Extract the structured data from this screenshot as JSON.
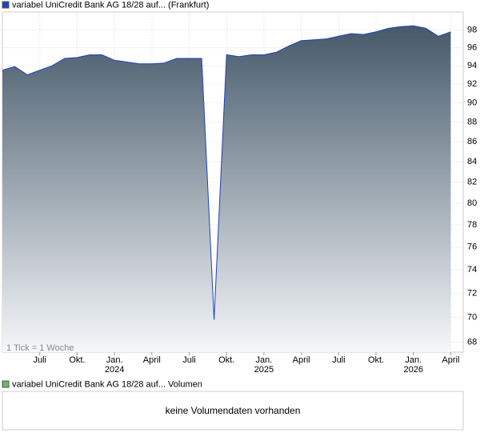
{
  "chart_data": {
    "type": "area",
    "title": "variabel UniCredit Bank AG 18/28 auf... (Frankfurt)",
    "note": "1 Tick = 1 Woche",
    "volume_legend": "variabel UniCredit Bank AG 18/28 auf... Volumen",
    "volume_message": "keine Volumendaten vorhanden",
    "volume_color": "#66bb66",
    "x": [
      "2023-04",
      "2023-05",
      "2023-06",
      "2023-07",
      "2023-08",
      "2023-09",
      "2023-10",
      "2023-11",
      "2023-12",
      "2024-01",
      "2024-02",
      "2024-03",
      "2024-04",
      "2024-05",
      "2024-06",
      "2024-07",
      "2024-08",
      "2024-09",
      "2024-10",
      "2024-11",
      "2024-12",
      "2025-01",
      "2025-02",
      "2025-03",
      "2025-04",
      "2025-05",
      "2025-06",
      "2025-07",
      "2025-08",
      "2025-09",
      "2025-10",
      "2025-11",
      "2025-12",
      "2026-01",
      "2026-02",
      "2026-03",
      "2026-04"
    ],
    "series": [
      {
        "name": "variabel UniCredit Bank AG 18/28 auf... (Frankfurt)",
        "color": "#1f3fbf",
        "values": [
          93.5,
          93.9,
          93.0,
          93.5,
          94.0,
          94.8,
          94.9,
          95.2,
          95.2,
          94.6,
          94.4,
          94.2,
          94.2,
          94.3,
          94.8,
          94.8,
          94.8,
          69.8,
          95.2,
          95.0,
          95.2,
          95.2,
          95.5,
          96.2,
          96.8,
          96.9,
          97.0,
          97.3,
          97.6,
          97.5,
          97.8,
          98.2,
          98.4,
          98.5,
          98.2,
          97.3,
          97.8
        ]
      }
    ],
    "xlim": [
      "2023-04",
      "2026-05"
    ],
    "xticks": [
      {
        "value": "2023-07",
        "label": "Juli"
      },
      {
        "value": "2023-10",
        "label": "Okt."
      },
      {
        "value": "2024-01",
        "label": "Jan.",
        "year": "2024"
      },
      {
        "value": "2024-04",
        "label": "April"
      },
      {
        "value": "2024-07",
        "label": "Juli"
      },
      {
        "value": "2024-10",
        "label": "Okt."
      },
      {
        "value": "2025-01",
        "label": "Jan.",
        "year": "2025"
      },
      {
        "value": "2025-04",
        "label": "April"
      },
      {
        "value": "2025-07",
        "label": "Juli"
      },
      {
        "value": "2025-10",
        "label": "Okt."
      },
      {
        "value": "2026-01",
        "label": "Jan.",
        "year": "2026"
      },
      {
        "value": "2026-04",
        "label": "April"
      }
    ],
    "ylim": [
      67.2,
      100.1
    ],
    "yticks": [
      68,
      70,
      72,
      74,
      76,
      78,
      80,
      82,
      84,
      86,
      88,
      90,
      92,
      94,
      96,
      98
    ],
    "log_scale": true,
    "grid": true
  }
}
